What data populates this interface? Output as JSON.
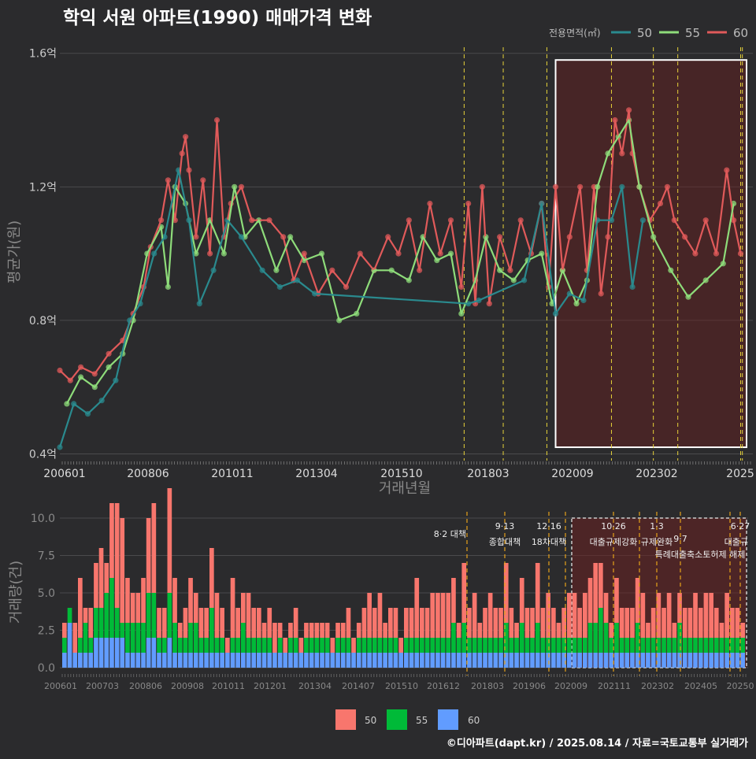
{
  "title": "학익 서원 아파트(1990) 매매가격 변화",
  "credit": "©디아파트(dapt.kr) / 2025.08.14 / 자료=국토교통부 실거래가",
  "colors": {
    "s50": "#e05a5a",
    "s55": "#8edc7a",
    "s60": "#2a8a8e",
    "bar50": "#f8766d",
    "bar55": "#00ba38",
    "bar60": "#619cff",
    "policy": "#e6d23a",
    "policyBar": "#e6a21a"
  },
  "top_legend": {
    "title": "전용면적(㎡)",
    "items": [
      "50",
      "55",
      "60"
    ]
  },
  "bottom_legend": {
    "items": [
      "50",
      "55",
      "60"
    ]
  },
  "policy_labels": {
    "l1": "8·2 대책",
    "l2": "9·13",
    "l2b": "종합대책",
    "l3": "12·16",
    "l3b": "18차대책",
    "l4": "10·26",
    "l4b": "대출규제강화",
    "l5": "1·3",
    "l5b": "규제완화",
    "l6": "9·7",
    "l6b": "특례대출축소토허제 해제",
    "l7": "6·27",
    "l7b": "대출규"
  },
  "chart_data": [
    {
      "type": "line",
      "title": "학익 서원 아파트(1990) 매매가격 변화",
      "xlabel": "거래년월",
      "ylabel": "평균가(원)",
      "ylim": [
        0.38,
        1.63
      ],
      "xlim": [
        2006.0,
        2025.85
      ],
      "x_ticks": [
        "200601",
        "200806",
        "201011",
        "201304",
        "201510",
        "201803",
        "202009",
        "202302",
        "2025"
      ],
      "y_ticks": [
        "0.4억",
        "0.8억",
        "1.2억",
        "1.6억"
      ],
      "grid": true,
      "legend": "top-right",
      "series": [
        {
          "name": "50",
          "values": [
            [
              2006.0,
              0.65
            ],
            [
              2006.3,
              0.62
            ],
            [
              2006.6,
              0.66
            ],
            [
              2007.0,
              0.64
            ],
            [
              2007.4,
              0.7
            ],
            [
              2007.8,
              0.74
            ],
            [
              2008.1,
              0.82
            ],
            [
              2008.4,
              0.9
            ],
            [
              2008.6,
              1.02
            ],
            [
              2008.9,
              1.1
            ],
            [
              2009.1,
              1.22
            ],
            [
              2009.3,
              1.1
            ],
            [
              2009.5,
              1.3
            ],
            [
              2009.6,
              1.35
            ],
            [
              2009.7,
              1.25
            ],
            [
              2009.9,
              1.05
            ],
            [
              2010.1,
              1.22
            ],
            [
              2010.3,
              1.0
            ],
            [
              2010.5,
              1.4
            ],
            [
              2010.7,
              1.05
            ],
            [
              2010.9,
              1.15
            ],
            [
              2011.2,
              1.2
            ],
            [
              2011.5,
              1.1
            ],
            [
              2012.0,
              1.1
            ],
            [
              2012.4,
              1.05
            ],
            [
              2012.7,
              0.92
            ],
            [
              2013.0,
              1.0
            ],
            [
              2013.4,
              0.88
            ],
            [
              2013.8,
              0.95
            ],
            [
              2014.2,
              0.9
            ],
            [
              2014.6,
              1.0
            ],
            [
              2015.0,
              0.95
            ],
            [
              2015.4,
              1.05
            ],
            [
              2015.7,
              1.0
            ],
            [
              2016.0,
              1.1
            ],
            [
              2016.3,
              0.95
            ],
            [
              2016.6,
              1.15
            ],
            [
              2016.9,
              1.0
            ],
            [
              2017.2,
              1.1
            ],
            [
              2017.5,
              0.9
            ],
            [
              2017.7,
              1.15
            ],
            [
              2017.9,
              0.85
            ],
            [
              2018.1,
              1.2
            ],
            [
              2018.3,
              0.85
            ],
            [
              2018.6,
              1.05
            ],
            [
              2018.9,
              0.95
            ],
            [
              2019.2,
              1.1
            ],
            [
              2019.5,
              1.0
            ],
            [
              2019.8,
              1.15
            ],
            [
              2020.0,
              0.9
            ],
            [
              2020.2,
              1.2
            ],
            [
              2020.4,
              0.95
            ],
            [
              2020.6,
              1.05
            ],
            [
              2020.9,
              1.2
            ],
            [
              2021.1,
              0.95
            ],
            [
              2021.3,
              1.2
            ],
            [
              2021.5,
              0.88
            ],
            [
              2021.7,
              1.05
            ],
            [
              2021.9,
              1.4
            ],
            [
              2022.1,
              1.3
            ],
            [
              2022.3,
              1.43
            ],
            [
              2022.4,
              1.3
            ],
            [
              2022.6,
              1.2
            ],
            [
              2022.9,
              1.1
            ],
            [
              2023.2,
              1.15
            ],
            [
              2023.4,
              1.2
            ],
            [
              2023.6,
              1.1
            ],
            [
              2023.9,
              1.05
            ],
            [
              2024.2,
              1.0
            ],
            [
              2024.5,
              1.1
            ],
            [
              2024.8,
              1.0
            ],
            [
              2025.1,
              1.25
            ],
            [
              2025.3,
              1.1
            ],
            [
              2025.5,
              1.0
            ]
          ]
        },
        {
          "name": "55",
          "values": [
            [
              2006.2,
              0.55
            ],
            [
              2006.6,
              0.63
            ],
            [
              2007.0,
              0.6
            ],
            [
              2007.4,
              0.66
            ],
            [
              2007.8,
              0.7
            ],
            [
              2008.1,
              0.8
            ],
            [
              2008.5,
              1.0
            ],
            [
              2008.9,
              1.08
            ],
            [
              2009.1,
              0.9
            ],
            [
              2009.3,
              1.2
            ],
            [
              2009.6,
              1.15
            ],
            [
              2009.9,
              1.0
            ],
            [
              2010.3,
              1.1
            ],
            [
              2010.7,
              1.0
            ],
            [
              2011.0,
              1.2
            ],
            [
              2011.3,
              1.05
            ],
            [
              2011.7,
              1.1
            ],
            [
              2012.2,
              0.95
            ],
            [
              2012.6,
              1.05
            ],
            [
              2013.0,
              0.98
            ],
            [
              2013.5,
              1.0
            ],
            [
              2014.0,
              0.8
            ],
            [
              2014.5,
              0.82
            ],
            [
              2015.0,
              0.95
            ],
            [
              2015.5,
              0.95
            ],
            [
              2016.0,
              0.92
            ],
            [
              2016.4,
              1.05
            ],
            [
              2016.8,
              0.98
            ],
            [
              2017.2,
              1.0
            ],
            [
              2017.5,
              0.82
            ],
            [
              2017.9,
              0.92
            ],
            [
              2018.2,
              1.05
            ],
            [
              2018.6,
              0.95
            ],
            [
              2019.0,
              0.92
            ],
            [
              2019.4,
              0.98
            ],
            [
              2019.8,
              1.0
            ],
            [
              2020.1,
              0.85
            ],
            [
              2020.4,
              0.95
            ],
            [
              2020.8,
              0.85
            ],
            [
              2021.1,
              0.92
            ],
            [
              2021.4,
              1.2
            ],
            [
              2021.7,
              1.3
            ],
            [
              2022.0,
              1.35
            ],
            [
              2022.3,
              1.4
            ],
            [
              2022.6,
              1.2
            ],
            [
              2023.0,
              1.05
            ],
            [
              2023.5,
              0.95
            ],
            [
              2024.0,
              0.87
            ],
            [
              2024.5,
              0.92
            ],
            [
              2025.0,
              0.97
            ],
            [
              2025.3,
              1.15
            ]
          ]
        },
        {
          "name": "60",
          "values": [
            [
              2006.0,
              0.42
            ],
            [
              2006.4,
              0.55
            ],
            [
              2006.8,
              0.52
            ],
            [
              2007.2,
              0.56
            ],
            [
              2007.6,
              0.62
            ],
            [
              2008.0,
              0.8
            ],
            [
              2008.3,
              0.85
            ],
            [
              2008.7,
              1.0
            ],
            [
              2009.0,
              1.05
            ],
            [
              2009.4,
              1.25
            ],
            [
              2009.7,
              1.1
            ],
            [
              2010.0,
              0.85
            ],
            [
              2010.4,
              0.95
            ],
            [
              2010.8,
              1.1
            ],
            [
              2011.2,
              1.05
            ],
            [
              2011.8,
              0.95
            ],
            [
              2012.3,
              0.9
            ],
            [
              2012.8,
              0.92
            ],
            [
              2013.3,
              0.88
            ],
            [
              2017.7,
              0.85
            ],
            [
              2018.0,
              0.86
            ],
            [
              2019.3,
              0.92
            ],
            [
              2019.8,
              1.15
            ],
            [
              2020.2,
              0.82
            ],
            [
              2020.6,
              0.88
            ],
            [
              2021.0,
              0.86
            ],
            [
              2021.4,
              1.1
            ],
            [
              2021.8,
              1.1
            ],
            [
              2022.1,
              1.2
            ],
            [
              2022.4,
              0.9
            ],
            [
              2022.7,
              1.1
            ]
          ]
        }
      ]
    },
    {
      "type": "bar",
      "xlabel": "",
      "ylabel": "거래량(건)",
      "ylim": [
        0,
        10
      ],
      "y_ticks": [
        "0.0",
        "2.5",
        "5.0",
        "7.5",
        "10.0"
      ],
      "x_ticks": [
        "200601",
        "200703",
        "200806",
        "200908",
        "201011",
        "201201",
        "201304",
        "201407",
        "201510",
        "201612",
        "201803",
        "201906",
        "202009",
        "202111",
        "202302",
        "202405",
        "20250"
      ],
      "grid": true,
      "legend": "bottom",
      "series": [
        {
          "name": "50",
          "values": [
            1,
            0,
            2,
            4,
            1,
            2,
            3,
            4,
            2,
            5,
            7,
            7,
            3,
            2,
            2,
            3,
            5,
            6,
            2,
            2,
            7,
            3,
            1,
            2,
            3,
            2,
            2,
            2,
            4,
            3,
            2,
            1,
            4,
            2,
            2,
            3,
            2,
            2,
            1,
            2,
            2,
            1,
            1,
            1,
            2,
            1,
            1,
            1,
            1,
            1,
            1,
            1,
            1,
            1,
            2,
            1,
            1,
            2,
            3,
            2,
            3,
            1,
            2,
            2,
            1,
            2,
            2,
            4,
            2,
            2,
            3,
            3,
            3,
            3,
            3,
            1,
            4,
            2,
            3,
            1,
            2,
            3,
            2,
            2,
            4,
            2,
            1,
            3,
            2,
            2,
            4,
            2,
            3,
            2,
            1,
            2,
            3,
            3,
            2,
            3,
            3,
            4,
            3,
            2,
            1,
            3,
            2,
            2,
            2,
            3,
            3,
            1,
            2,
            3,
            2,
            3,
            1,
            2,
            2,
            2,
            3,
            2,
            3,
            3,
            2,
            1,
            3,
            2,
            2,
            1
          ]
        },
        {
          "name": "55",
          "values": [
            1,
            1,
            0,
            1,
            2,
            1,
            2,
            2,
            3,
            4,
            2,
            1,
            2,
            2,
            2,
            2,
            3,
            3,
            1,
            1,
            3,
            2,
            1,
            1,
            2,
            2,
            1,
            1,
            3,
            1,
            1,
            0,
            1,
            1,
            2,
            1,
            1,
            1,
            1,
            1,
            0,
            1,
            0,
            1,
            1,
            0,
            1,
            1,
            1,
            1,
            1,
            0,
            1,
            1,
            1,
            0,
            1,
            1,
            1,
            1,
            1,
            1,
            1,
            1,
            0,
            1,
            1,
            1,
            1,
            1,
            1,
            1,
            1,
            1,
            2,
            1,
            2,
            1,
            1,
            1,
            1,
            1,
            1,
            1,
            2,
            1,
            1,
            2,
            1,
            1,
            2,
            1,
            1,
            1,
            1,
            1,
            1,
            1,
            1,
            1,
            2,
            2,
            3,
            2,
            1,
            2,
            1,
            1,
            1,
            2,
            1,
            1,
            1,
            1,
            1,
            1,
            1,
            2,
            1,
            1,
            1,
            1,
            1,
            1,
            1,
            1,
            1,
            1,
            1,
            1
          ]
        },
        {
          "name": "60",
          "values": [
            1,
            3,
            1,
            1,
            1,
            1,
            2,
            2,
            2,
            2,
            2,
            2,
            1,
            1,
            1,
            1,
            2,
            2,
            1,
            1,
            2,
            1,
            1,
            1,
            1,
            1,
            1,
            1,
            1,
            1,
            1,
            1,
            1,
            1,
            1,
            1,
            1,
            1,
            1,
            1,
            1,
            1,
            1,
            1,
            1,
            1,
            1,
            1,
            1,
            1,
            1,
            1,
            1,
            1,
            1,
            1,
            1,
            1,
            1,
            1,
            1,
            1,
            1,
            1,
            1,
            1,
            1,
            1,
            1,
            1,
            1,
            1,
            1,
            1,
            1,
            1,
            1,
            1,
            1,
            1,
            1,
            1,
            1,
            1,
            1,
            1,
            1,
            1,
            1,
            1,
            1,
            1,
            1,
            1,
            1,
            1,
            1,
            1,
            1,
            1,
            1,
            1,
            1,
            1,
            1,
            1,
            1,
            1,
            1,
            1,
            1,
            1,
            1,
            1,
            1,
            1,
            1,
            1,
            1,
            1,
            1,
            1,
            1,
            1,
            1,
            1,
            1,
            1,
            1,
            1
          ]
        }
      ]
    }
  ]
}
